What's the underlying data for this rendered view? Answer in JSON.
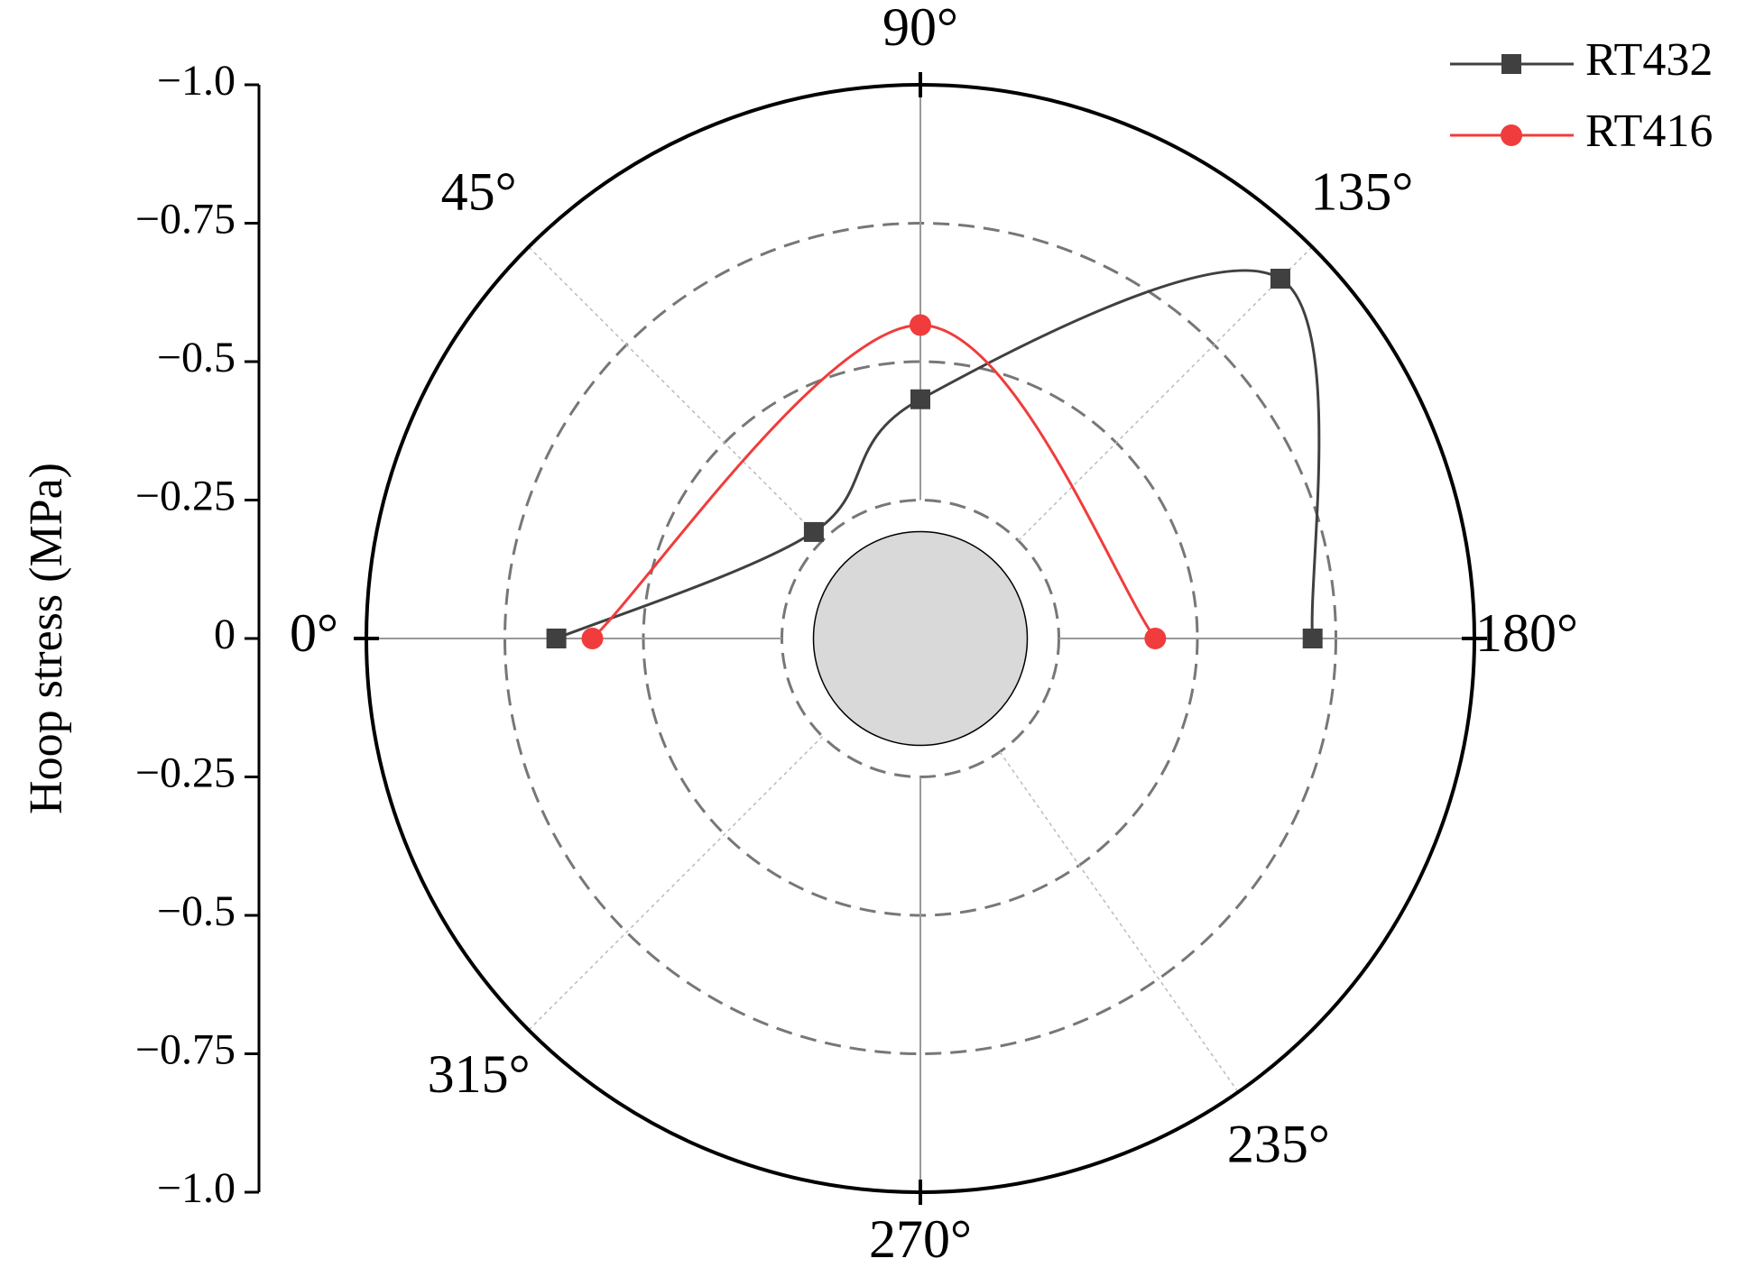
{
  "chart_data": {
    "type": "polar",
    "ylabel": "Hoop stress (MPa)",
    "rlim": [
      0,
      -1.0
    ],
    "rticks": [
      {
        "value": -1.0,
        "label": "−1.0"
      },
      {
        "value": -0.75,
        "label": "−0.75"
      },
      {
        "value": -0.5,
        "label": "−0.5"
      },
      {
        "value": -0.25,
        "label": "−0.25"
      },
      0
    ],
    "angle_ticks": [
      {
        "value": 0,
        "label": "0°"
      },
      {
        "value": 45,
        "label": "45°"
      },
      {
        "value": 90,
        "label": "90°"
      },
      {
        "value": 135,
        "label": "135°"
      },
      {
        "value": 180,
        "label": "180°"
      },
      {
        "value": 235,
        "label": "235°"
      },
      {
        "value": 270,
        "label": "270°"
      },
      {
        "value": 315,
        "label": "315°"
      }
    ],
    "grid": true,
    "legend": "upper right",
    "series": [
      {
        "name": "RT432",
        "color": "#404040",
        "marker": "square",
        "theta": [
          0,
          45,
          90,
          135,
          180
        ],
        "values": [
          -0.657,
          -0.272,
          -0.432,
          -0.919,
          -0.708
        ]
      },
      {
        "name": "RT416",
        "color": "#f03c3c",
        "marker": "circle",
        "theta": [
          0,
          90,
          180
        ],
        "values": [
          -0.592,
          -0.566,
          -0.424
        ]
      }
    ]
  }
}
